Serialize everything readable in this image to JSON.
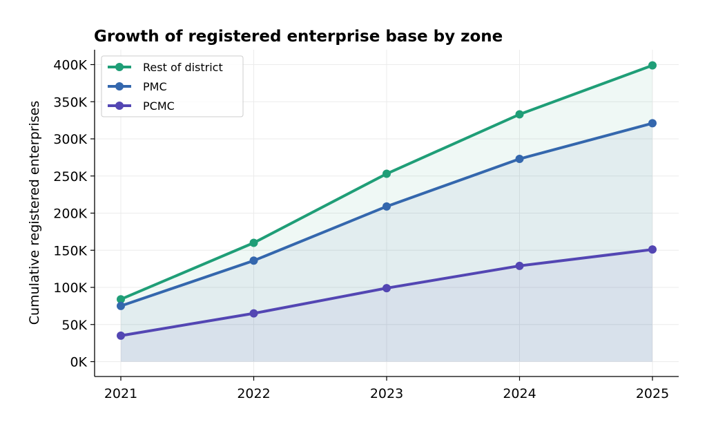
{
  "chart_data": {
    "type": "line",
    "title": "Growth of registered enterprise base by zone",
    "xlabel": "",
    "ylabel": "Cumulative registered enterprises",
    "x": [
      "2021",
      "2022",
      "2023",
      "2024",
      "2025"
    ],
    "ylim": [
      -20000,
      420000
    ],
    "yticks": [
      0,
      50000,
      100000,
      150000,
      200000,
      250000,
      300000,
      350000,
      400000
    ],
    "ytick_labels": [
      "0K",
      "50K",
      "100K",
      "150K",
      "200K",
      "250K",
      "300K",
      "350K",
      "400K"
    ],
    "grid": true,
    "legend_position": "top-left",
    "series": [
      {
        "name": "Rest of district",
        "color": "#1f9e77",
        "fill": "#e6f4ef",
        "values": [
          84000,
          160000,
          253000,
          333000,
          399000
        ]
      },
      {
        "name": "PMC",
        "color": "#3467ad",
        "fill": "#dde8ef",
        "values": [
          75000,
          136000,
          209000,
          273000,
          321000
        ]
      },
      {
        "name": "PCMC",
        "color": "#5346b3",
        "fill": "#d7e2ec",
        "values": [
          35000,
          65000,
          99000,
          129000,
          151000
        ]
      }
    ]
  }
}
